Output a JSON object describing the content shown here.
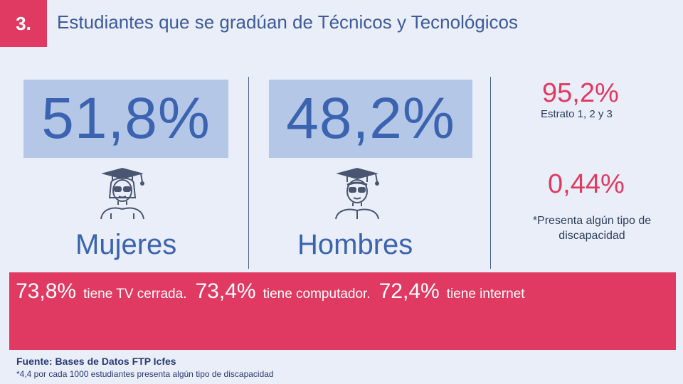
{
  "header": {
    "number": "3.",
    "title": "Estudiantes que se gradúan de Técnicos y Tecnológicos"
  },
  "groups": [
    {
      "percent": "51,8%",
      "label": "Mujeres",
      "icon": "female-graduate-icon"
    },
    {
      "percent": "48,2%",
      "label": "Hombres",
      "icon": "male-graduate-icon"
    }
  ],
  "side_stats": [
    {
      "value": "95,2%",
      "note": "Estrato 1, 2 y 3"
    },
    {
      "value": "0,44%",
      "note": "*Presenta algún tipo de discapacidad"
    }
  ],
  "band": {
    "items": [
      {
        "value": "73,8%",
        "text": "tiene TV cerrada."
      },
      {
        "value": "73,4%",
        "text": "tiene computador."
      },
      {
        "value": "72,4%",
        "text": "tiene internet"
      }
    ]
  },
  "footer": {
    "source": "Fuente: Bases de Datos FTP Icfes",
    "footnote": "*4,4 por cada 1000 estudiantes presenta algún tipo de discapacidad"
  },
  "colors": {
    "accent_pink": "#e03a62",
    "stat_blue": "#3b63b0",
    "box_blue": "#b4c7e7",
    "background": "#e9eef8"
  }
}
